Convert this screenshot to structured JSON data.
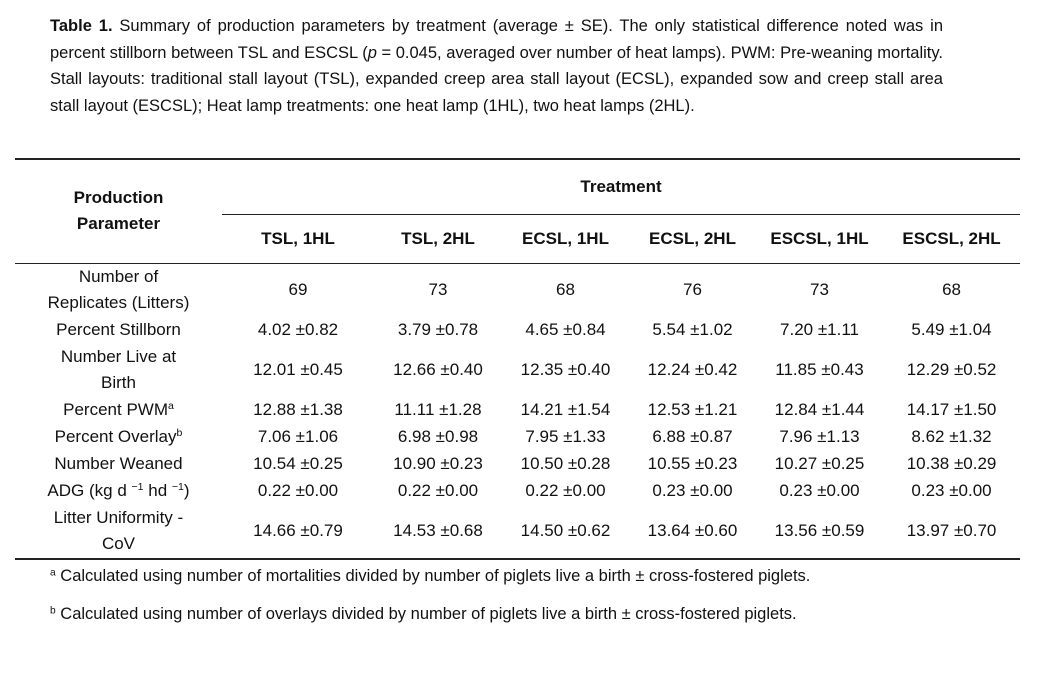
{
  "caption": [
    {
      "text": "Table 1.",
      "bold": true
    },
    {
      "text": " Summary of production parameters by treatment (average ± SE). The only statistical difference noted was in percent stillborn between TSL and ESCSL ("
    },
    {
      "text": "p",
      "italic": true
    },
    {
      "text": " = 0.045, averaged over number of heat lamps). PWM: Pre-weaning mortality. Stall layouts: traditional stall layout (TSL), expanded creep area stall layout (ECSL), expanded sow and creep stall area stall layout (ESCSL); Heat lamp treatments: one heat lamp (1HL), two heat lamps (2HL)."
    }
  ],
  "table": {
    "header": {
      "parameter": "Production Parameter",
      "treatment": "Treatment",
      "columns": [
        "TSL, 1HL",
        "TSL, 2HL",
        "ECSL, 1HL",
        "ECSL, 2HL",
        "ESCSL, 1HL",
        "ESCSL, 2HL"
      ]
    },
    "rows": [
      {
        "label": [
          {
            "text": "Number of Replicates (Litters)"
          }
        ],
        "values": [
          69,
          73,
          68,
          76,
          73,
          68
        ]
      },
      {
        "label": [
          {
            "text": "Percent Stillborn"
          }
        ],
        "values": [
          "4.02 ±0.82",
          "3.79 ±0.78",
          "4.65 ±0.84",
          "5.54 ±1.02",
          "7.20 ±1.11",
          "5.49 ±1.04"
        ]
      },
      {
        "label": [
          {
            "text": "Number Live at Birth"
          }
        ],
        "values": [
          "12.01 ±0.45",
          "12.66 ±0.40",
          "12.35 ±0.40",
          "12.24 ±0.42",
          "11.85 ±0.43",
          "12.29 ±0.52"
        ]
      },
      {
        "label": [
          {
            "text": "Percent PWM"
          },
          {
            "text": "a",
            "sup": true
          }
        ],
        "values": [
          "12.88 ±1.38",
          "11.11 ±1.28",
          "14.21 ±1.54",
          "12.53 ±1.21",
          "12.84 ±1.44",
          "14.17 ±1.50"
        ]
      },
      {
        "label": [
          {
            "text": "Percent Overlay"
          },
          {
            "text": "b",
            "sup": true
          }
        ],
        "values": [
          "7.06 ±1.06",
          "6.98 ±0.98",
          "7.95 ±1.33",
          "6.88 ±0.87",
          "7.96 ±1.13",
          "8.62 ±1.32"
        ]
      },
      {
        "label": [
          {
            "text": "Number Weaned"
          }
        ],
        "values": [
          "10.54 ±0.25",
          "10.90 ±0.23",
          "10.50 ±0.28",
          "10.55 ±0.23",
          "10.27 ±0.25",
          "10.38 ±0.29"
        ]
      },
      {
        "label": [
          {
            "text": "ADG (kg d "
          },
          {
            "text": "−1",
            "sup": true
          },
          {
            "text": " hd "
          },
          {
            "text": "−1",
            "sup": true
          },
          {
            "text": ")"
          }
        ],
        "values": [
          "0.22 ±0.00",
          "0.22 ±0.00",
          "0.22 ±0.00",
          "0.23 ±0.00",
          "0.23 ±0.00",
          "0.23 ±0.00"
        ]
      },
      {
        "label": [
          {
            "text": "Litter Uniformity - CoV"
          }
        ],
        "values": [
          "14.66 ±0.79",
          "14.53 ±0.68",
          "14.50 ±0.62",
          "13.64 ±0.60",
          "13.56 ±0.59",
          "13.97 ±0.70"
        ]
      }
    ]
  },
  "footnotes": [
    {
      "mark": "a",
      "text": "Calculated using number of mortalities divided by number of piglets live a birth ± cross-fostered piglets."
    },
    {
      "mark": "b",
      "text": "Calculated using number of overlays divided by number of piglets live a birth ± cross-fostered piglets."
    }
  ]
}
